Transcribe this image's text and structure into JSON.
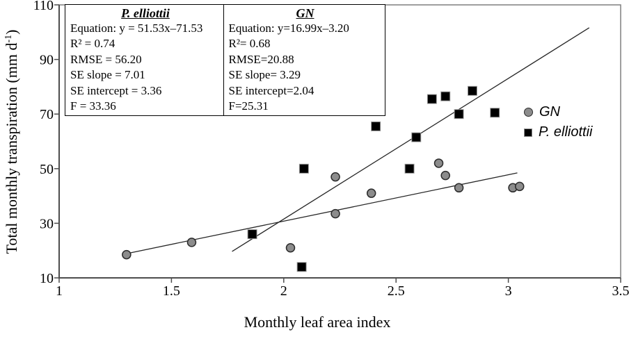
{
  "chart_data": {
    "type": "scatter",
    "title": "",
    "xlabel": "Monthly leaf area index",
    "ylabel": {
      "main": "Total monthly transpiration (mm d",
      "sup": "-1",
      "suffix": ")"
    },
    "xlim": [
      1,
      3.5
    ],
    "ylim": [
      10,
      110
    ],
    "xticks": [
      "1",
      "1.5",
      "2",
      "2.5",
      "3",
      "3.5"
    ],
    "yticks": [
      "10",
      "30",
      "50",
      "70",
      "90",
      "110"
    ],
    "grid": false,
    "series": [
      {
        "name": "GN",
        "marker": "circle",
        "fill": "#8c8c8c",
        "stroke": "#2b2b2b",
        "points": [
          [
            1.3,
            18.5
          ],
          [
            1.59,
            23
          ],
          [
            2.03,
            21
          ],
          [
            2.23,
            33.5
          ],
          [
            2.23,
            47
          ],
          [
            2.39,
            41
          ],
          [
            2.69,
            52
          ],
          [
            2.72,
            47.5
          ],
          [
            2.78,
            43
          ],
          [
            3.02,
            43
          ],
          [
            3.05,
            43.5
          ]
        ],
        "trendline": {
          "slope": 16.99,
          "intercept": -3.2,
          "x_start": 1.3,
          "x_end": 3.04
        }
      },
      {
        "name": "P. elliottii",
        "marker": "square",
        "fill": "#000000",
        "stroke": "#999999",
        "points": [
          [
            1.86,
            26
          ],
          [
            2.08,
            14
          ],
          [
            2.09,
            50
          ],
          [
            2.41,
            65.5
          ],
          [
            2.56,
            50
          ],
          [
            2.59,
            61.5
          ],
          [
            2.66,
            75.5
          ],
          [
            2.72,
            76.5
          ],
          [
            2.78,
            70
          ],
          [
            2.84,
            78.5
          ],
          [
            2.94,
            70.5
          ]
        ],
        "trendline": {
          "slope": 51.53,
          "intercept": -71.53,
          "x_start": 1.77,
          "x_end": 3.36
        }
      }
    ],
    "legend": {
      "position": "right",
      "items": [
        {
          "label": "GN",
          "marker": "circle"
        },
        {
          "label": "P. elliottii",
          "marker": "square"
        }
      ]
    },
    "annotation_boxes": [
      {
        "title": "P. elliottii",
        "lines": [
          "Equation: y = 51.53x–71.53",
          "R² = 0.74",
          "RMSE = 56.20",
          "SE slope = 7.01",
          "SE intercept = 3.36",
          "F = 33.36"
        ]
      },
      {
        "title": "GN",
        "lines": [
          "Equation: y=16.99x–3.20",
          "R²= 0.68",
          "RMSE=20.88",
          "SE slope= 3.29",
          "SE intercept=2.04",
          "F=25.31"
        ]
      }
    ],
    "colors": {
      "axis": "#4d4d4d",
      "plot_border": "#7f7f7f",
      "trendline": "#262626",
      "text": "#000000"
    }
  }
}
